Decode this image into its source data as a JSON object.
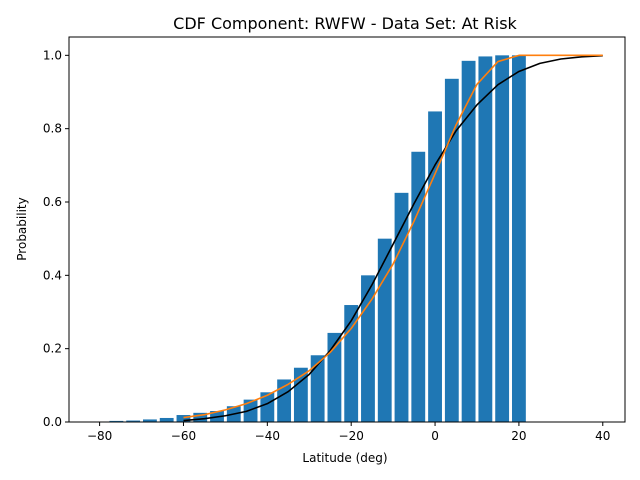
{
  "chart_data": {
    "type": "bar",
    "title": "CDF Component: RWFW - Data Set: At Risk",
    "xlabel": "Latitude (deg)",
    "ylabel": "Probability",
    "xlim": [
      -87.3,
      45.3
    ],
    "ylim": [
      0,
      1.05
    ],
    "xticks": [
      -80,
      -60,
      -40,
      -20,
      0,
      20,
      40
    ],
    "yticks": [
      0.0,
      0.2,
      0.4,
      0.6,
      0.8,
      1.0
    ],
    "xtick_labels": [
      "−80",
      "−60",
      "−40",
      "−20",
      "0",
      "20",
      "40"
    ],
    "ytick_labels": [
      "0.0",
      "0.2",
      "0.4",
      "0.6",
      "0.8",
      "1.0"
    ],
    "grid": false,
    "bar_width": 3.3,
    "bars": {
      "color": "#1f77b4",
      "x": [
        -80,
        -76,
        -72,
        -68,
        -64,
        -60,
        -56,
        -52,
        -48,
        -44,
        -40,
        -36,
        -32,
        -28,
        -24,
        -20,
        -16,
        -12,
        -8,
        -4,
        0,
        4,
        8,
        12,
        16,
        20
      ],
      "values": [
        0.001,
        0.003,
        0.004,
        0.007,
        0.011,
        0.019,
        0.025,
        0.03,
        0.043,
        0.061,
        0.081,
        0.116,
        0.148,
        0.182,
        0.243,
        0.319,
        0.4,
        0.5,
        0.625,
        0.737,
        0.847,
        0.936,
        0.985,
        0.997,
        1.0,
        1.0
      ]
    },
    "lines": [
      {
        "color": "#000000",
        "x": [
          -60,
          -55,
          -50,
          -45,
          -40,
          -35,
          -30,
          -25,
          -20,
          -15,
          -10,
          -5,
          0,
          5,
          10,
          15,
          20,
          25,
          30,
          35,
          40
        ],
        "y": [
          0.004,
          0.009,
          0.017,
          0.029,
          0.05,
          0.083,
          0.13,
          0.195,
          0.276,
          0.375,
          0.485,
          0.596,
          0.701,
          0.794,
          0.865,
          0.92,
          0.956,
          0.978,
          0.99,
          0.996,
          0.999
        ]
      },
      {
        "color": "#ff7f0e",
        "x": [
          -60,
          -55,
          -50,
          -45,
          -40,
          -35,
          -30,
          -25,
          -20,
          -15,
          -10,
          -5,
          0,
          5,
          10,
          15,
          20,
          25,
          30,
          35,
          40
        ],
        "y": [
          0.012,
          0.02,
          0.033,
          0.05,
          0.073,
          0.103,
          0.14,
          0.19,
          0.255,
          0.336,
          0.431,
          0.548,
          0.677,
          0.81,
          0.921,
          0.983,
          1.0,
          1.0,
          1.0,
          1.0,
          1.0
        ]
      }
    ]
  }
}
